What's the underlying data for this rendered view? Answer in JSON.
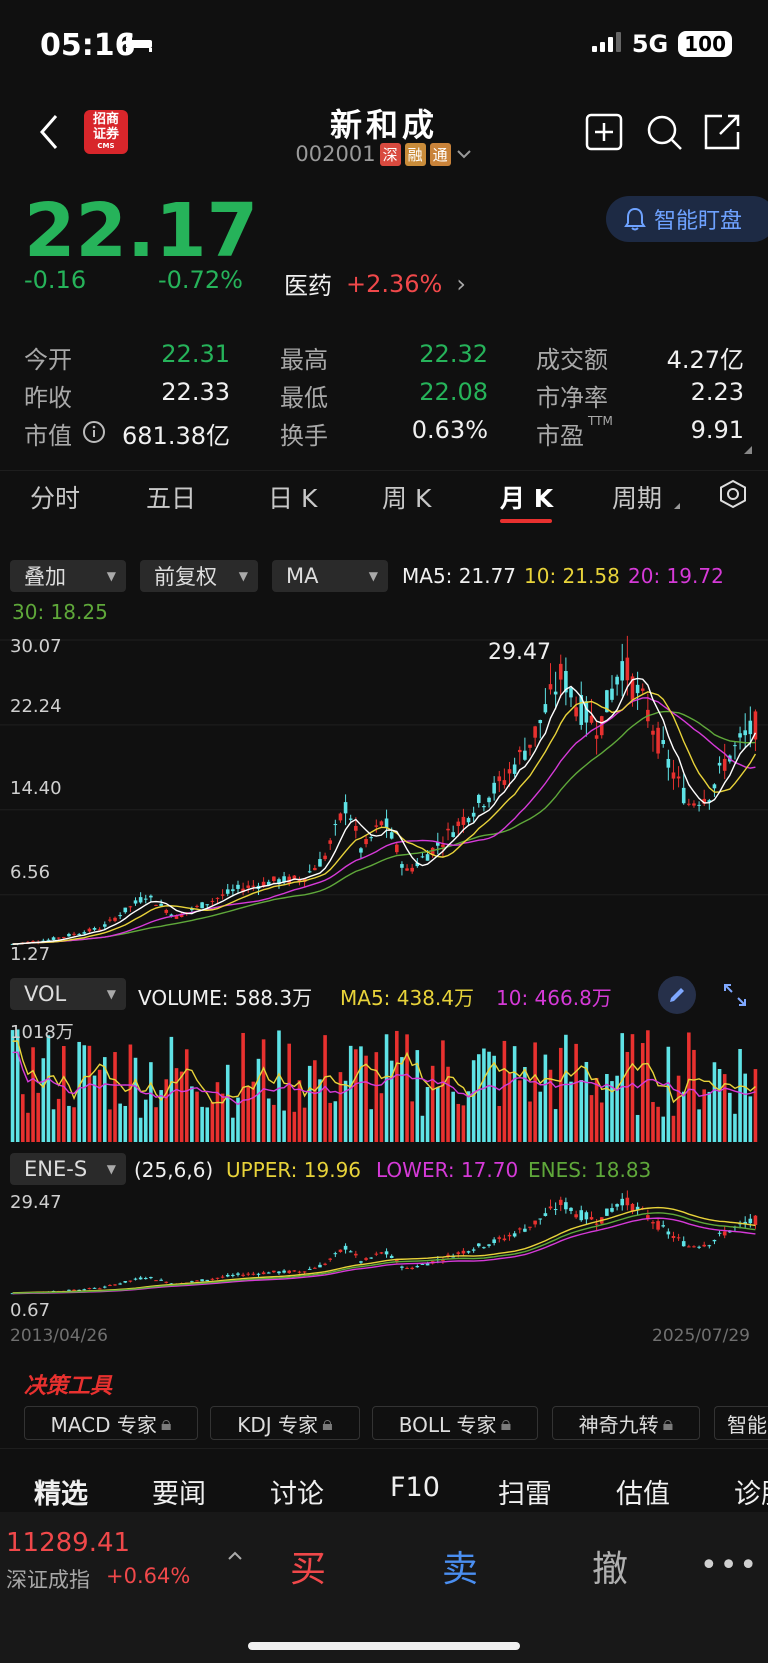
{
  "status_bar": {
    "time": "05:16",
    "network": "5G",
    "battery": "100"
  },
  "header": {
    "broker_logo_text": "招商证券",
    "broker_logo_sub": "CMS",
    "stock_name": "新和成",
    "stock_code": "002001",
    "tags": [
      "深",
      "融",
      "通"
    ]
  },
  "quote": {
    "price": "22.17",
    "change": "-0.16",
    "change_pct": "-0.72%",
    "sector_name": "医药",
    "sector_change": "+2.36%",
    "alert_label": "智能盯盘"
  },
  "stats": [
    {
      "label": "今开",
      "value": "22.31",
      "color": "#26b35a"
    },
    {
      "label": "昨收",
      "value": "22.33",
      "color": "#f0f0f0"
    },
    {
      "label": "市值",
      "value": "681.38亿",
      "color": "#f0f0f0"
    },
    {
      "label": "最高",
      "value": "22.32",
      "color": "#26b35a"
    },
    {
      "label": "最低",
      "value": "22.08",
      "color": "#26b35a"
    },
    {
      "label": "换手",
      "value": "0.63%",
      "color": "#f0f0f0"
    },
    {
      "label": "成交额",
      "value": "4.27亿",
      "color": "#f0f0f0"
    },
    {
      "label": "市净率",
      "value": "2.23",
      "color": "#f0f0f0"
    },
    {
      "label": "市盈",
      "value": "9.91",
      "color": "#f0f0f0",
      "sup": "TTM"
    }
  ],
  "tabs": [
    {
      "label": "分时"
    },
    {
      "label": "五日"
    },
    {
      "label": "日 K"
    },
    {
      "label": "周 K"
    },
    {
      "label": "月 K"
    },
    {
      "label": "周期"
    }
  ],
  "chart_controls": {
    "overlay": "叠加",
    "adjust": "前复权",
    "indicator": "MA",
    "ma5": "MA5: 21.77",
    "ma10": "10: 21.58",
    "ma20": "20: 19.72",
    "ma30": "30: 18.25"
  },
  "main_chart": {
    "y_labels": [
      "30.07",
      "22.24",
      "14.40",
      "6.56",
      "1.27"
    ],
    "high_label": "29.47"
  },
  "volume_panel": {
    "indicator": "VOL",
    "volume": "VOLUME: 588.3万",
    "ma5": "MA5: 438.4万",
    "ma10": "10: 466.8万",
    "y_label": "1018万"
  },
  "ene_panel": {
    "indicator": "ENE-S",
    "params": "(25,6,6)",
    "upper": "UPPER: 19.96",
    "lower": "LOWER: 17.70",
    "ene": "ENES: 18.83",
    "y_top": "29.47",
    "y_bottom": "0.67",
    "date_start": "2013/04/26",
    "date_end": "2025/07/29"
  },
  "tools": {
    "title": "决策工具",
    "chips": [
      "MACD 专家",
      "KDJ 专家",
      "BOLL 专家",
      "神奇九转",
      "智能"
    ]
  },
  "bottom_nav": [
    "精选",
    "要闻",
    "讨论",
    "F10",
    "扫雷",
    "估值",
    "诊股"
  ],
  "footer": {
    "index_value": "11289.41",
    "index_name": "深证成指",
    "index_change": "+0.64%",
    "buy": "买",
    "sell": "卖",
    "cancel": "撤"
  },
  "colors": {
    "up": "#f0484a",
    "down": "#26b35a",
    "ma5": "#ffffff",
    "ma10": "#e8d33a",
    "ma20": "#d63ad8",
    "ma30": "#5fa83a",
    "bull_candle": "#e8312f",
    "bear_candle": "#5fe3e6"
  }
}
